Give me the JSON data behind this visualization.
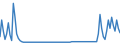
{
  "values": [
    15,
    45,
    25,
    10,
    20,
    40,
    18,
    8,
    75,
    50,
    20,
    12,
    8,
    6,
    5,
    5,
    5,
    5,
    5,
    5,
    5,
    5,
    5,
    5,
    5,
    5,
    5,
    5,
    5,
    5,
    5,
    5,
    5,
    5,
    5,
    5,
    5,
    5,
    5,
    5,
    5,
    5,
    5,
    6,
    6,
    6,
    6,
    6,
    6,
    6,
    6,
    6,
    6,
    6,
    6,
    6,
    6,
    6,
    6,
    20,
    55,
    30,
    15,
    10,
    25,
    45,
    30,
    50,
    35,
    25,
    45,
    30,
    22
  ],
  "line_color": "#3a7ebf",
  "background_color": "#ffffff",
  "linewidth": 1.0
}
